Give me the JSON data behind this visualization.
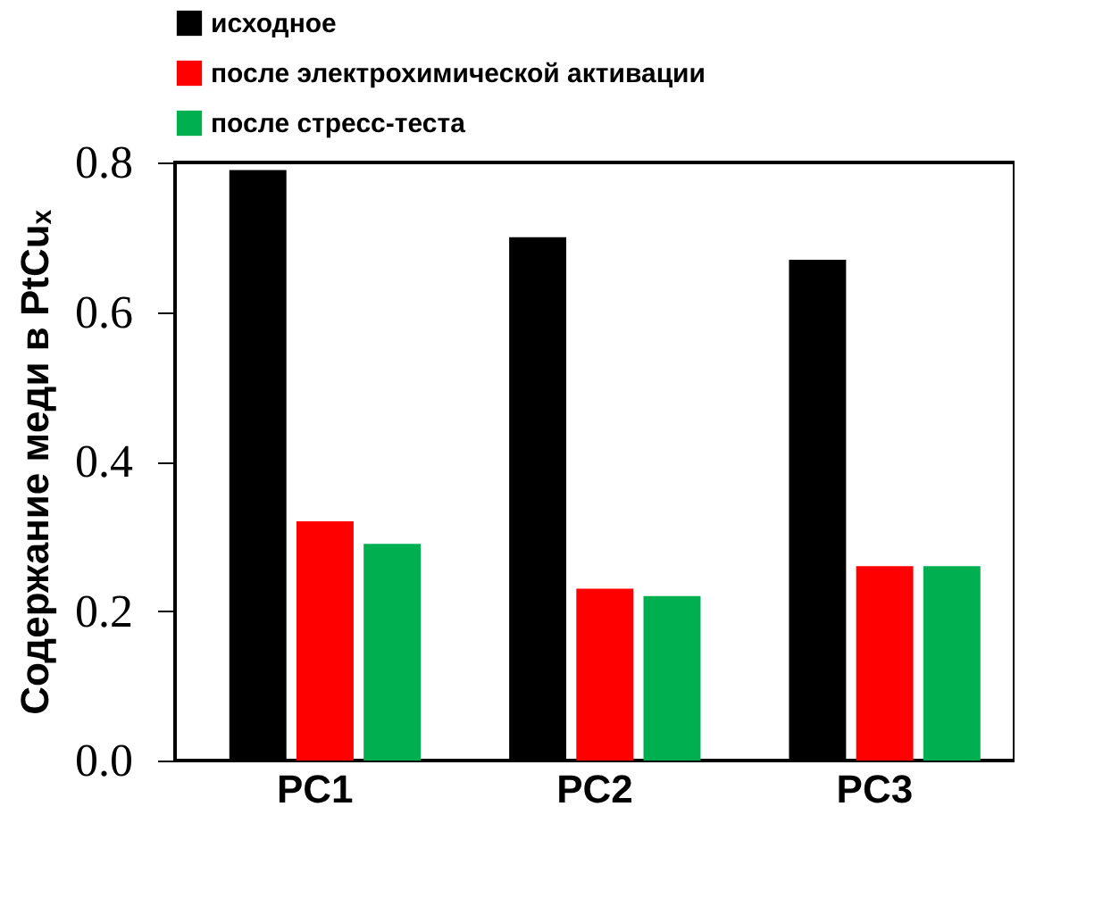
{
  "chart_data": {
    "type": "bar",
    "ylabel": "Содержание меди в PtCuₓ",
    "categories": [
      "PC1",
      "PC2",
      "PC3"
    ],
    "series": [
      {
        "name": "исходное",
        "color": "#000000",
        "values": [
          0.79,
          0.7,
          0.67
        ]
      },
      {
        "name": "после электрохимической активации",
        "color": "#ff0000",
        "values": [
          0.32,
          0.23,
          0.26
        ]
      },
      {
        "name": "после стресс-теста",
        "color": "#00b050",
        "values": [
          0.29,
          0.22,
          0.26
        ]
      }
    ],
    "ylim": [
      0,
      0.8
    ],
    "yticks": [
      {
        "value": 0,
        "label": "0.0"
      },
      0.2,
      0.4,
      0.6,
      0.8
    ],
    "grid": false,
    "legend": "top"
  }
}
